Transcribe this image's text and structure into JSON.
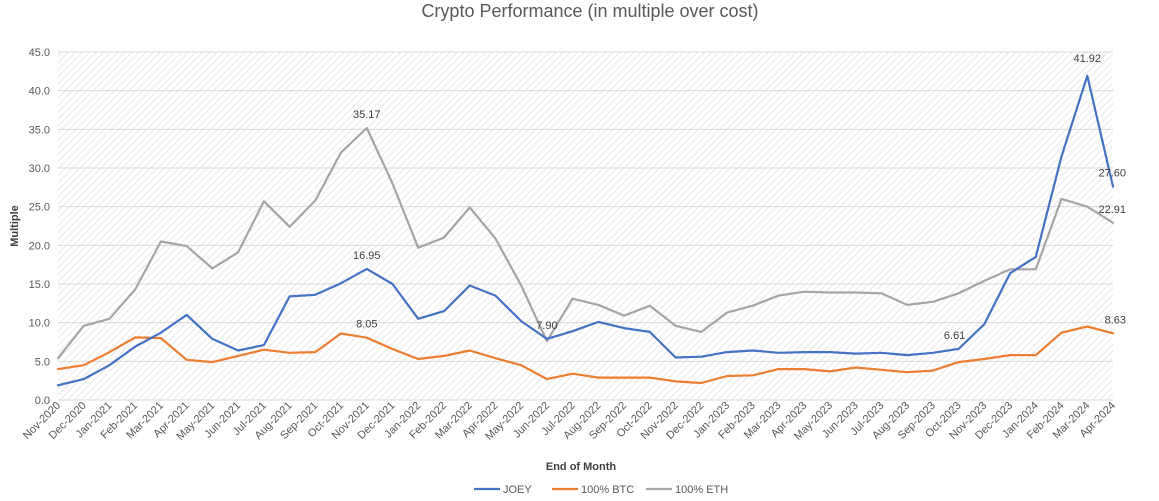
{
  "chart_data": {
    "type": "line",
    "title": "Crypto Performance (in multiple over cost)",
    "xlabel": "End of Month",
    "ylabel": "Multiple",
    "ylim": [
      0,
      45
    ],
    "yticks": [
      "0.0",
      "5.0",
      "10.0",
      "15.0",
      "20.0",
      "25.0",
      "30.0",
      "35.0",
      "40.0",
      "45.0"
    ],
    "grid": true,
    "background": "diagonal hatch",
    "legend_position": "bottom",
    "categories": [
      "Nov-2020",
      "Dec-2020",
      "Jan-2021",
      "Feb-2021",
      "Mar-2021",
      "Apr-2021",
      "May-2021",
      "Jun-2021",
      "Jul-2021",
      "Aug-2021",
      "Sep-2021",
      "Oct-2021",
      "Nov-2021",
      "Dec-2021",
      "Jan-2022",
      "Feb-2022",
      "Mar-2022",
      "Apr-2022",
      "May-2022",
      "Jun-2022",
      "Jul-2022",
      "Aug-2022",
      "Sep-2022",
      "Oct-2022",
      "Nov-2022",
      "Dec-2022",
      "Jan-2023",
      "Feb-2023",
      "Mar-2023",
      "Apr-2023",
      "May-2023",
      "Jun-2023",
      "Jul-2023",
      "Aug-2023",
      "Sep-2023",
      "Oct-2023",
      "Nov-2023",
      "Dec-2023",
      "Jan-2024",
      "Feb-2024",
      "Mar-2024",
      "Apr-2024"
    ],
    "series": [
      {
        "name": "JOEY",
        "color": "#4472C4",
        "values": [
          1.9,
          2.7,
          4.5,
          6.9,
          8.7,
          11.0,
          7.9,
          6.4,
          7.1,
          13.4,
          13.6,
          15.1,
          16.95,
          15.0,
          10.5,
          11.5,
          14.8,
          13.5,
          10.2,
          7.9,
          8.9,
          10.1,
          9.3,
          8.8,
          5.5,
          5.6,
          6.2,
          6.4,
          6.1,
          6.2,
          6.2,
          6.0,
          6.1,
          5.8,
          6.1,
          6.61,
          9.8,
          16.4,
          18.5,
          31.5,
          41.92,
          27.6
        ],
        "labels": {
          "12": "16.95",
          "19": "7.90",
          "35": "6.61",
          "40": "41.92",
          "41": "27.60"
        }
      },
      {
        "name": "100% BTC",
        "color": "#ED7D31",
        "values": [
          4.0,
          4.5,
          6.2,
          8.1,
          8.0,
          5.2,
          4.9,
          5.7,
          6.5,
          6.1,
          6.2,
          8.6,
          8.05,
          6.6,
          5.3,
          5.7,
          6.4,
          5.4,
          4.5,
          2.7,
          3.4,
          2.9,
          2.9,
          2.9,
          2.4,
          2.2,
          3.1,
          3.2,
          4.0,
          4.0,
          3.7,
          4.2,
          3.9,
          3.6,
          3.8,
          4.9,
          5.3,
          5.8,
          5.8,
          8.7,
          9.5,
          8.63
        ],
        "labels": {
          "12": "8.05",
          "41": "8.63"
        }
      },
      {
        "name": "100% ETH",
        "color": "#A5A5A5",
        "values": [
          5.4,
          9.6,
          10.5,
          14.3,
          20.5,
          19.9,
          17.0,
          19.1,
          25.7,
          22.4,
          25.8,
          32.0,
          35.17,
          28.0,
          19.7,
          21.0,
          24.9,
          20.9,
          14.8,
          7.6,
          13.1,
          12.3,
          10.9,
          12.2,
          9.6,
          8.8,
          11.3,
          12.2,
          13.5,
          14.0,
          13.9,
          13.9,
          13.8,
          12.3,
          12.7,
          13.8,
          15.4,
          16.9,
          16.9,
          26.0,
          25.0,
          22.91
        ],
        "labels": {
          "12": "35.17",
          "41": "22.91"
        }
      }
    ]
  }
}
